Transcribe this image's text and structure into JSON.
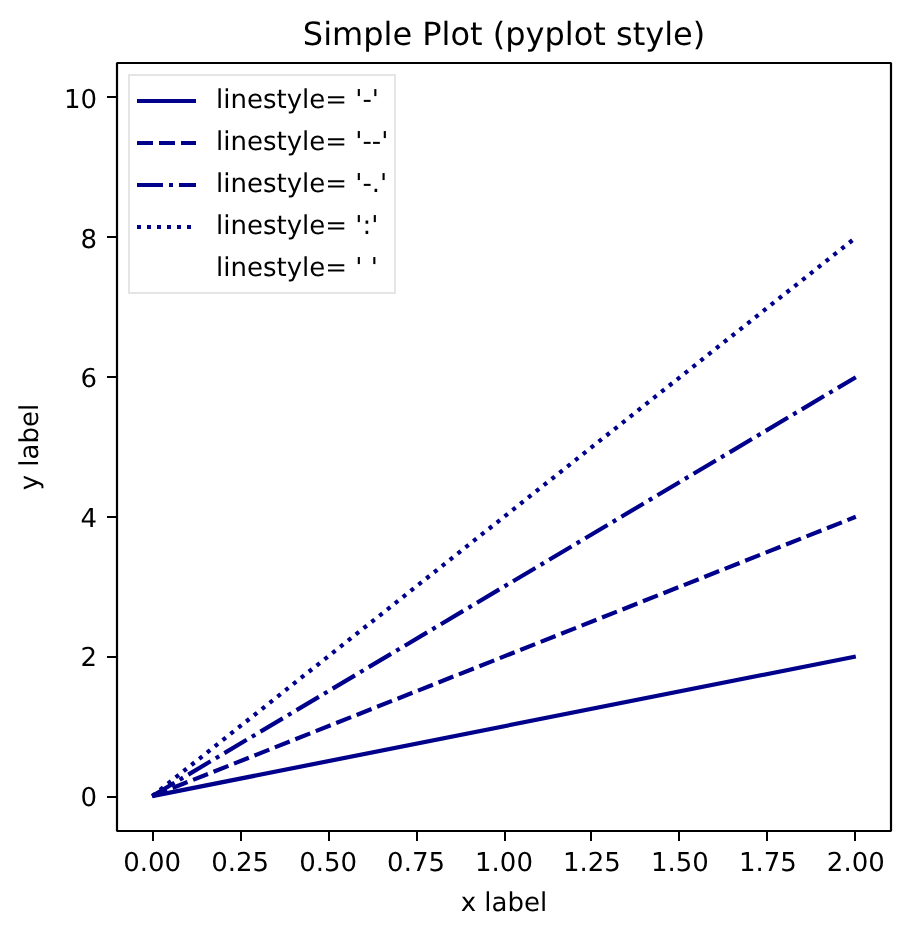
{
  "chart_data": {
    "type": "line",
    "title": "Simple Plot (pyplot style)",
    "xlabel": "x label",
    "ylabel": "y label",
    "x": [
      0,
      2
    ],
    "series": [
      {
        "name": "linestyle= '-'",
        "color": "#00008b",
        "line_style": "solid",
        "values": [
          0,
          2
        ]
      },
      {
        "name": "linestyle= '--'",
        "color": "#00008b",
        "line_style": "dashed",
        "values": [
          0,
          4
        ]
      },
      {
        "name": "linestyle= '-.'",
        "color": "#00008b",
        "line_style": "dashdot",
        "values": [
          0,
          6
        ]
      },
      {
        "name": "linestyle= ':'",
        "color": "#00008b",
        "line_style": "dotted",
        "values": [
          0,
          8
        ]
      },
      {
        "name": "linestyle= ' '",
        "line_style": "none",
        "values": [
          null,
          null
        ]
      }
    ],
    "xlim": [
      -0.1,
      2.1
    ],
    "ylim": [
      -0.5,
      10.5
    ],
    "xticks": [
      {
        "value": 0,
        "label": "0.00"
      },
      {
        "value": 0.25,
        "label": "0.25"
      },
      {
        "value": 0.5,
        "label": "0.50"
      },
      {
        "value": 0.75,
        "label": "0.75"
      },
      {
        "value": 1,
        "label": "1.00"
      },
      {
        "value": 1.25,
        "label": "1.25"
      },
      {
        "value": 1.5,
        "label": "1.50"
      },
      {
        "value": 1.75,
        "label": "1.75"
      },
      {
        "value": 2,
        "label": "2.00"
      }
    ],
    "yticks": [
      0,
      2,
      4,
      6,
      8,
      10
    ],
    "grid": false,
    "legend": "top left"
  }
}
